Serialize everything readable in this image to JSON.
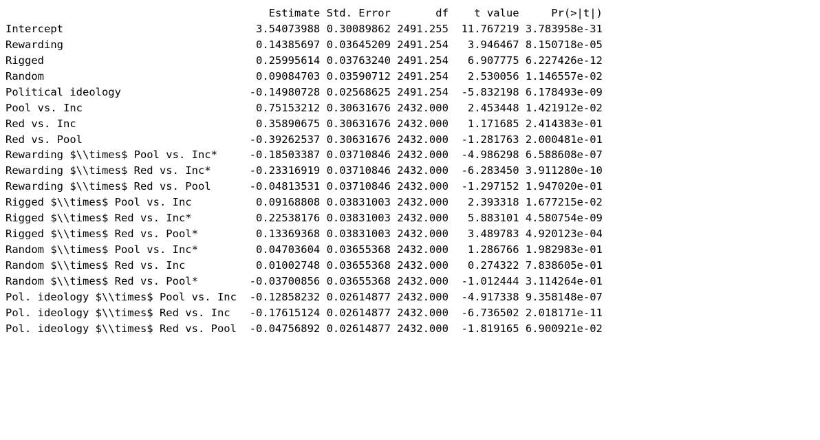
{
  "font_family": "monospace",
  "font_size_pt": 13,
  "text_color": "#000000",
  "background_color": "#ffffff",
  "columns": [
    "Estimate",
    "Std. Error",
    "df",
    "t value",
    "Pr(>|t|)"
  ],
  "col_align": [
    "right",
    "right",
    "right",
    "right",
    "right"
  ],
  "rows": [
    {
      "label": "Intercept",
      "estimate": " 3.54073988",
      "se": "0.30089862",
      "df": "2491.255",
      "t": " 11.767219",
      "p": "3.783958e-31"
    },
    {
      "label": "Rewarding",
      "estimate": " 0.14385697",
      "se": "0.03645209",
      "df": "2491.254",
      "t": "  3.946467",
      "p": "8.150718e-05"
    },
    {
      "label": "Rigged",
      "estimate": " 0.25995614",
      "se": "0.03763240",
      "df": "2491.254",
      "t": "  6.907775",
      "p": "6.227426e-12"
    },
    {
      "label": "Random",
      "estimate": " 0.09084703",
      "se": "0.03590712",
      "df": "2491.254",
      "t": "  2.530056",
      "p": "1.146557e-02"
    },
    {
      "label": "Political ideology",
      "estimate": "-0.14980728",
      "se": "0.02568625",
      "df": "2491.254",
      "t": " -5.832198",
      "p": "6.178493e-09"
    },
    {
      "label": "Pool vs. Inc",
      "estimate": " 0.75153212",
      "se": "0.30631676",
      "df": "2432.000",
      "t": "  2.453448",
      "p": "1.421912e-02"
    },
    {
      "label": "Red vs. Inc",
      "estimate": " 0.35890675",
      "se": "0.30631676",
      "df": "2432.000",
      "t": "  1.171685",
      "p": "2.414383e-01"
    },
    {
      "label": "Red vs. Pool",
      "estimate": "-0.39262537",
      "se": "0.30631676",
      "df": "2432.000",
      "t": " -1.281763",
      "p": "2.000481e-01"
    },
    {
      "label": "Rewarding $\\\\times$ Pool vs. Inc*",
      "estimate": "-0.18503387",
      "se": "0.03710846",
      "df": "2432.000",
      "t": " -4.986298",
      "p": "6.588608e-07"
    },
    {
      "label": "Rewarding $\\\\times$ Red vs. Inc*",
      "estimate": "-0.23316919",
      "se": "0.03710846",
      "df": "2432.000",
      "t": " -6.283450",
      "p": "3.911280e-10"
    },
    {
      "label": "Rewarding $\\\\times$ Red vs. Pool",
      "estimate": "-0.04813531",
      "se": "0.03710846",
      "df": "2432.000",
      "t": " -1.297152",
      "p": "1.947020e-01"
    },
    {
      "label": "Rigged $\\\\times$ Pool vs. Inc",
      "estimate": " 0.09168808",
      "se": "0.03831003",
      "df": "2432.000",
      "t": "  2.393318",
      "p": "1.677215e-02"
    },
    {
      "label": "Rigged $\\\\times$ Red vs. Inc*",
      "estimate": " 0.22538176",
      "se": "0.03831003",
      "df": "2432.000",
      "t": "  5.883101",
      "p": "4.580754e-09"
    },
    {
      "label": "Rigged $\\\\times$ Red vs. Pool*",
      "estimate": " 0.13369368",
      "se": "0.03831003",
      "df": "2432.000",
      "t": "  3.489783",
      "p": "4.920123e-04"
    },
    {
      "label": "Random $\\\\times$ Pool vs. Inc*",
      "estimate": " 0.04703604",
      "se": "0.03655368",
      "df": "2432.000",
      "t": "  1.286766",
      "p": "1.982983e-01"
    },
    {
      "label": "Random $\\\\times$ Red vs. Inc",
      "estimate": " 0.01002748",
      "se": "0.03655368",
      "df": "2432.000",
      "t": "  0.274322",
      "p": "7.838605e-01"
    },
    {
      "label": "Random $\\\\times$ Red vs. Pool*",
      "estimate": "-0.03700856",
      "se": "0.03655368",
      "df": "2432.000",
      "t": " -1.012444",
      "p": "3.114264e-01"
    },
    {
      "label": "Pol. ideology $\\\\times$ Pool vs. Inc",
      "estimate": "-0.12858232",
      "se": "0.02614877",
      "df": "2432.000",
      "t": " -4.917338",
      "p": "9.358148e-07"
    },
    {
      "label": "Pol. ideology $\\\\times$ Red vs. Inc",
      "estimate": "-0.17615124",
      "se": "0.02614877",
      "df": "2432.000",
      "t": " -6.736502",
      "p": "2.018171e-11"
    },
    {
      "label": "Pol. ideology $\\\\times$ Red vs. Pool",
      "estimate": "-0.04756892",
      "se": "0.02614877",
      "df": "2432.000",
      "t": " -1.819165",
      "p": "6.900921e-02"
    }
  ]
}
